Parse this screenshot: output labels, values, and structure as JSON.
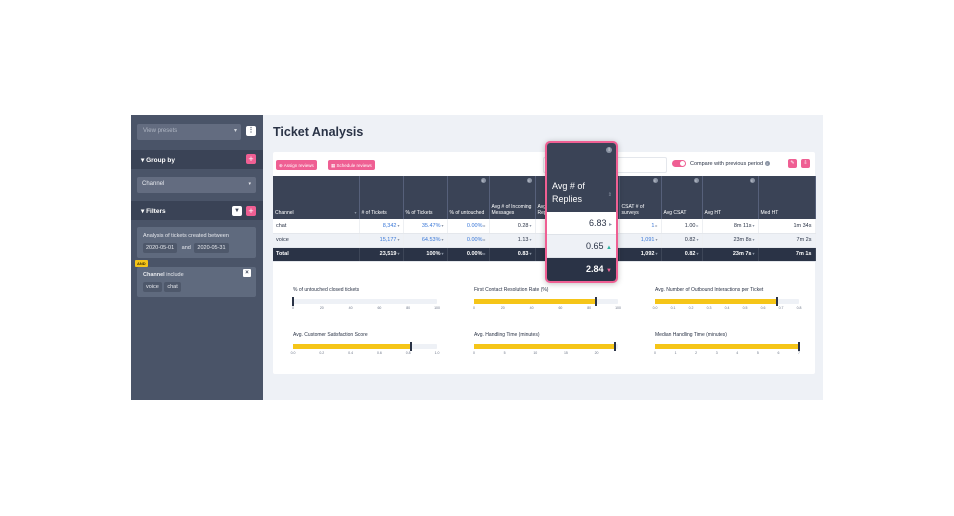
{
  "sidebar": {
    "view_preset_placeholder": "View presets",
    "more_icon": "⋮",
    "group_by": {
      "title": "Group by",
      "value": "Channel"
    },
    "filters": {
      "title": "Filters",
      "date_label": "Analysis of tickets created between",
      "date_from": "2020-05-01",
      "date_and": "and",
      "date_to": "2020-05-31",
      "and_badge": "AND",
      "channel_label": "Channel",
      "channel_op": "include",
      "channel_values": [
        "voice",
        "chat"
      ]
    }
  },
  "header": {
    "title": "Ticket Analysis"
  },
  "toolbar": {
    "assign_label": "Assign reviews",
    "schedule_label": "Schedule reviews",
    "compare_label": "Compare with previous period",
    "compare_on": true
  },
  "table": {
    "columns": [
      "Channel",
      "# of Tickets",
      "% of Tickets",
      "% of untouched",
      "Avg # of Incoming Messages",
      "Avg # of Replies",
      "",
      "CSAT # of surveys",
      "Avg CSAT",
      "Avg HT",
      "Med HT"
    ],
    "rows": [
      {
        "cells": [
          "chat",
          "8,342",
          "35.47%",
          "0.00%",
          "0.28",
          "",
          "",
          "1",
          "1.00",
          "8m 11s",
          "1m 34s"
        ]
      },
      {
        "cells": [
          "voice",
          "15,177",
          "64.53%",
          "0.00%",
          "1.13",
          "",
          "",
          "1,091",
          "0.82",
          "23m 8s",
          "7m 2s"
        ]
      },
      {
        "cells": [
          "Total",
          "23,519",
          "100%",
          "0.00%",
          "0.83",
          "",
          "",
          "1,092",
          "0.82",
          "23m 7s",
          "7m 1s"
        ]
      }
    ]
  },
  "zoom": {
    "header": "Avg # of Replies",
    "values": [
      "6.83",
      "0.65",
      "2.84"
    ]
  },
  "metrics": [
    {
      "title": "% of untouched closed tickets",
      "ticks": [
        "0",
        "20",
        "40",
        "60",
        "80",
        "100"
      ],
      "value": 0,
      "max": 100
    },
    {
      "title": "First Contact Resolution Rate (%)",
      "ticks": [
        "0",
        "20",
        "40",
        "60",
        "80",
        "100"
      ],
      "value": 85,
      "max": 100
    },
    {
      "title": "Avg. Number of Outbound Interactions per Ticket",
      "ticks": [
        "0.0",
        "0.1",
        "0.2",
        "0.3",
        "0.4",
        "0.5",
        "0.6",
        "0.7",
        "0.8"
      ],
      "value": 0.68,
      "max": 0.8
    },
    {
      "title": "Avg. Customer Satisfaction Score",
      "ticks": [
        "0.0",
        "0.2",
        "0.4",
        "0.6",
        "0.8",
        "1.0"
      ],
      "value": 0.82,
      "max": 1.0
    },
    {
      "title": "Avg. Handling Time (minutes)",
      "ticks": [
        "0",
        "5",
        "10",
        "15",
        "20"
      ],
      "value": 23,
      "max": 23.5
    },
    {
      "title": "Median Handling Time (minutes)",
      "ticks": [
        "0",
        "1",
        "2",
        "3",
        "4",
        "5",
        "6",
        "7"
      ],
      "value": 7.0,
      "max": 7.0
    }
  ],
  "colors": {
    "accent": "#ef5f93",
    "bar": "#f5c518",
    "header_bg": "#3a4356"
  }
}
